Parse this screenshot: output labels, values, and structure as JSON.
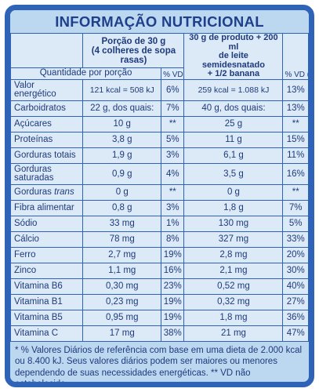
{
  "title": "INFORMAÇÃO NUTRICIONAL",
  "header": {
    "portion_line1": "Porção de 30 g",
    "portion_line2": "(4 colheres de sopa rasas)",
    "product_line1": "30 g de produto + 200 ml",
    "product_line2": "de leite semidesnatado",
    "product_line3": "+ 1/2 banana",
    "qty_label": "Quantidade por porção",
    "vd1_label": "% VD (*)",
    "vd2_label": "% VD (*)"
  },
  "rows": [
    {
      "name1": "Valor",
      "name2": "energético",
      "q1": "121 kcal = 508 kJ",
      "vd1": "6%",
      "q2": "259 kcal = 1.088 kJ",
      "vd2": "13%"
    },
    {
      "name1": "Carboidratos",
      "name2": "",
      "q1": "22 g, dos quais:",
      "vd1": "7%",
      "q2": "40 g, dos quais:",
      "vd2": "13%"
    },
    {
      "name1": "Açúcares",
      "name2": "",
      "q1": "10 g",
      "vd1": "**",
      "q2": "25 g",
      "vd2": "**"
    },
    {
      "name1": "Proteínas",
      "name2": "",
      "q1": "3,8 g",
      "vd1": "5%",
      "q2": "11 g",
      "vd2": "15%"
    },
    {
      "name1": "Gorduras totais",
      "name2": "",
      "q1": "1,9 g",
      "vd1": "3%",
      "q2": "6,1 g",
      "vd2": "11%"
    },
    {
      "name1": "Gorduras",
      "name2": "saturadas",
      "q1": "0,9 g",
      "vd1": "4%",
      "q2": "3,5 g",
      "vd2": "16%"
    },
    {
      "name1": "Gorduras",
      "name1_italic": "trans",
      "name2": "",
      "q1": "0 g",
      "vd1": "**",
      "q2": "0 g",
      "vd2": "**"
    },
    {
      "name1": "Fibra alimentar",
      "name2": "",
      "q1": "0,8 g",
      "vd1": "3%",
      "q2": "1,8 g",
      "vd2": "7%"
    },
    {
      "name1": "Sódio",
      "name2": "",
      "q1": "33 mg",
      "vd1": "1%",
      "q2": "130 mg",
      "vd2": "5%"
    },
    {
      "name1": "Cálcio",
      "name2": "",
      "q1": "78 mg",
      "vd1": "8%",
      "q2": "327 mg",
      "vd2": "33%"
    },
    {
      "name1": "Ferro",
      "name2": "",
      "q1": "2,7 mg",
      "vd1": "19%",
      "q2": "2,8 mg",
      "vd2": "20%"
    },
    {
      "name1": "Zinco",
      "name2": "",
      "q1": "1,1 mg",
      "vd1": "16%",
      "q2": "2,1 mg",
      "vd2": "30%"
    },
    {
      "name1": "Vitamina B6",
      "name2": "",
      "q1": "0,30 mg",
      "vd1": "23%",
      "q2": "0,52 mg",
      "vd2": "40%"
    },
    {
      "name1": "Vitamina B1",
      "name2": "",
      "q1": "0,23 mg",
      "vd1": "19%",
      "q2": "0,32 mg",
      "vd2": "27%"
    },
    {
      "name1": "Vitamina B5",
      "name2": "",
      "q1": "0,95 mg",
      "vd1": "19%",
      "q2": "1,8 mg",
      "vd2": "36%"
    },
    {
      "name1": "Vitamina C",
      "name2": "",
      "q1": "17 mg",
      "vd1": "38%",
      "q2": "21 mg",
      "vd2": "47%"
    }
  ],
  "footnote": "* % Valores Diários de referência com base em uma dieta de 2.000 kcal ou 8.400 kJ. Seus valores diários podem ser maiores ou menores dependendo de suas necessidades energéticas. ** VD não estabelecido.",
  "colors": {
    "border": "#2f63b8",
    "background": "#bcd8f0",
    "cell": "#dceaf7",
    "text": "#1e3a7b"
  }
}
